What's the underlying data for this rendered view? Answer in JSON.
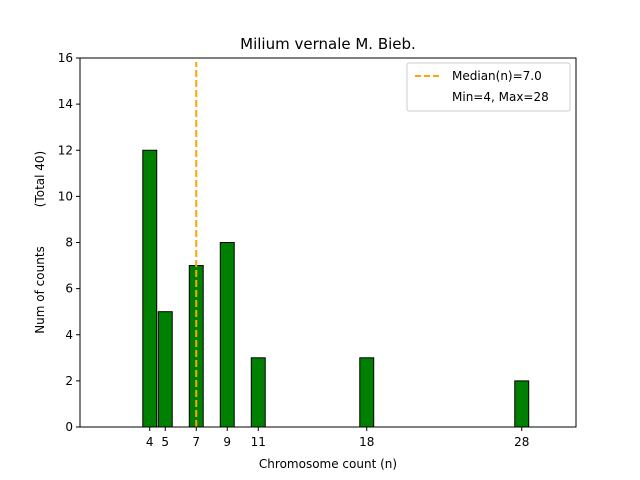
{
  "chart_data": {
    "type": "bar",
    "title": "Milium vernale M. Bieb.",
    "xlabel": "Chromosome count (n)",
    "ylabel": "Num of counts",
    "ylabel2": "(Total 40)",
    "x": [
      4,
      5,
      7,
      9,
      11,
      18,
      28
    ],
    "values": [
      12,
      5,
      7,
      8,
      3,
      3,
      2
    ],
    "xticks": [
      4,
      5,
      7,
      9,
      11,
      18,
      28
    ],
    "xlim": [
      -0.5,
      31.5
    ],
    "yticks": [
      0,
      2,
      4,
      6,
      8,
      10,
      12,
      14,
      16
    ],
    "ylim": [
      0,
      16
    ],
    "median": 7.0,
    "bar_color": "#008000",
    "median_color": "#FFA500",
    "legend": {
      "placement": "upper right",
      "entries": [
        "Median(n)=7.0",
        "Min=4, Max=28"
      ]
    }
  }
}
